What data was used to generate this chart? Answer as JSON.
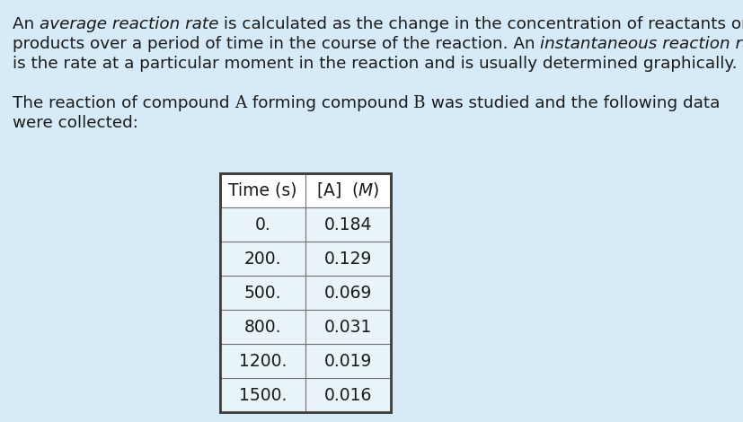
{
  "bg_color": "#d6eaf8",
  "cell_bg": "#e8f4f8",
  "text_color": "#1a1a1a",
  "table_times": [
    "0.",
    "200.",
    "500.",
    "800.",
    "1200.",
    "1500."
  ],
  "table_conc": [
    "0.184",
    "0.129",
    "0.069",
    "0.031",
    "0.019",
    "0.016"
  ],
  "font_size_text": 13.2,
  "font_size_table": 13.5
}
